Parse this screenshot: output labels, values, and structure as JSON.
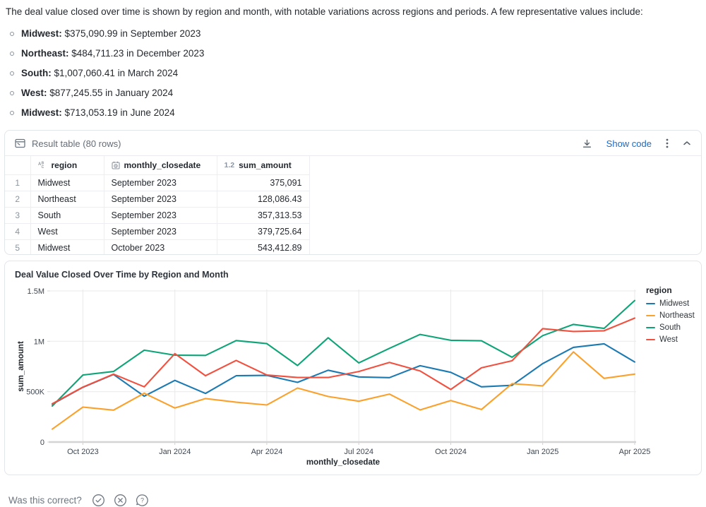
{
  "intro": {
    "paragraph": "The deal value closed over time is shown by region and month, with notable variations across regions and periods. A few representative values include:",
    "bullets": [
      {
        "label": "Midwest:",
        "text": " $375,090.99 in September 2023"
      },
      {
        "label": "Northeast:",
        "text": " $484,711.23 in December 2023"
      },
      {
        "label": "South:",
        "text": " $1,007,060.41 in March 2024"
      },
      {
        "label": "West:",
        "text": " $877,245.55 in January 2024"
      },
      {
        "label": "Midwest:",
        "text": " $713,053.19 in June 2024"
      }
    ]
  },
  "table_card": {
    "title": "Result table (80 rows)",
    "show_code_label": "Show code",
    "columns": [
      {
        "label": "region",
        "type": "string"
      },
      {
        "label": "monthly_closedate",
        "type": "date"
      },
      {
        "label": "sum_amount",
        "type": "number",
        "type_glyph": "1.2"
      }
    ],
    "rows": [
      {
        "num": "1",
        "region": "Midwest",
        "monthly_closedate": "September 2023",
        "sum_amount": "375,091"
      },
      {
        "num": "2",
        "region": "Northeast",
        "monthly_closedate": "September 2023",
        "sum_amount": "128,086.43"
      },
      {
        "num": "3",
        "region": "South",
        "monthly_closedate": "September 2023",
        "sum_amount": "357,313.53"
      },
      {
        "num": "4",
        "region": "West",
        "monthly_closedate": "September 2023",
        "sum_amount": "379,725.64"
      },
      {
        "num": "5",
        "region": "Midwest",
        "monthly_closedate": "October 2023",
        "sum_amount": "543,412.89"
      }
    ]
  },
  "chart_card": {
    "title": "Deal Value Closed Over Time by Region and Month"
  },
  "chart_data": {
    "type": "line",
    "title": "Deal Value Closed Over Time by Region and Month",
    "xlabel": "monthly_closedate",
    "ylabel": "sum_amount",
    "legend_title": "region",
    "legend_position": "right",
    "grid": true,
    "ylim": [
      0,
      1500000
    ],
    "y_ticks": [
      {
        "value": 0,
        "label": "0"
      },
      {
        "value": 500000,
        "label": "500K"
      },
      {
        "value": 1000000,
        "label": "1M"
      },
      {
        "value": 1500000,
        "label": "1.5M"
      }
    ],
    "x": [
      "Sep 2023",
      "Oct 2023",
      "Nov 2023",
      "Dec 2023",
      "Jan 2024",
      "Feb 2024",
      "Mar 2024",
      "Apr 2024",
      "May 2024",
      "Jun 2024",
      "Jul 2024",
      "Aug 2024",
      "Sep 2024",
      "Oct 2024",
      "Nov 2024",
      "Dec 2024",
      "Jan 2025",
      "Feb 2025",
      "Mar 2025",
      "Apr 2025"
    ],
    "x_tick_indices": [
      1,
      4,
      7,
      10,
      13,
      16,
      19
    ],
    "x_tick_labels": [
      "Oct 2023",
      "Jan 2024",
      "Apr 2024",
      "Jul 2024",
      "Oct 2024",
      "Jan 2025",
      "Apr 2025"
    ],
    "series": [
      {
        "name": "Midwest",
        "color": "#1c7ab3",
        "values": [
          375091,
          543413,
          671000,
          455000,
          612000,
          482000,
          658000,
          662000,
          592000,
          713053,
          646000,
          639000,
          758000,
          692000,
          548000,
          563000,
          779000,
          940000,
          975000,
          795000
        ]
      },
      {
        "name": "Northeast",
        "color": "#fba12b",
        "values": [
          128086,
          347000,
          317000,
          484711,
          338000,
          432000,
          395000,
          368000,
          536000,
          452000,
          405000,
          476000,
          319000,
          412000,
          323000,
          580000,
          558000,
          895000,
          632000,
          674000
        ]
      },
      {
        "name": "South",
        "color": "#0fa478",
        "values": [
          357314,
          665000,
          700000,
          912000,
          862000,
          860000,
          1007060,
          977000,
          760000,
          1035000,
          786000,
          930000,
          1068000,
          1010000,
          1005000,
          842000,
          1056000,
          1168000,
          1128000,
          1405000
        ]
      },
      {
        "name": "West",
        "color": "#f2503f",
        "values": [
          379726,
          545000,
          674000,
          548000,
          877246,
          658000,
          810000,
          665000,
          641000,
          641000,
          700000,
          790000,
          705000,
          522000,
          737000,
          807000,
          1126000,
          1098000,
          1105000,
          1230000
        ]
      }
    ]
  },
  "footer": {
    "question": "Was this correct?"
  }
}
